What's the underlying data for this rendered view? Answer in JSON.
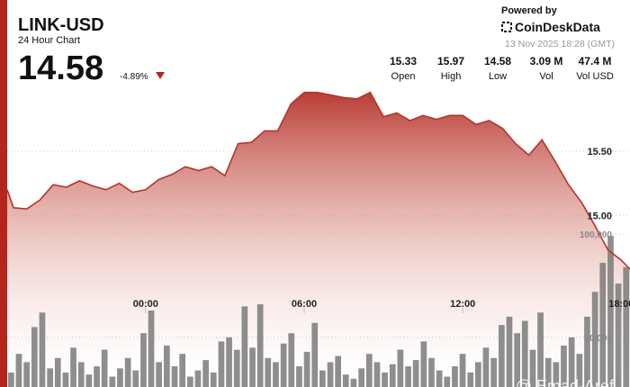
{
  "header": {
    "symbol": "LINK-USD",
    "subtitle": "24 Hour Chart",
    "price": "14.58",
    "change": "-4.89%",
    "powered_by": "Powered by",
    "brand": "CoinDeskData",
    "timestamp": "13 Nov 2025 18:28 (GMT)",
    "stats": [
      {
        "value": "15.33",
        "label": "Open"
      },
      {
        "value": "15.97",
        "label": "High"
      },
      {
        "value": "14.58",
        "label": "Low"
      },
      {
        "value": "3.09 M",
        "label": "Vol"
      },
      {
        "value": "47.4 M",
        "label": "Vol USD"
      }
    ]
  },
  "watermark": "@ Emad-Aref",
  "chart_data": {
    "type": "line",
    "xlim": [
      -5.24,
      18.33
    ],
    "xticks": [
      {
        "value": 0,
        "label": "00:00"
      },
      {
        "value": 6,
        "label": "06:00"
      },
      {
        "value": 12,
        "label": "12:00"
      },
      {
        "value": 18,
        "label": "18:00"
      }
    ],
    "ylim": [
      13.66,
      16.26
    ],
    "yticks": [
      {
        "value": 15,
        "label": "15.00"
      },
      {
        "value": 15.5,
        "label": "15.50"
      }
    ],
    "y2lim": [
      26000,
      187000
    ],
    "y2ticks": [
      {
        "value": 50000,
        "label": "50,000"
      },
      {
        "value": 100000,
        "label": "100,000"
      }
    ],
    "grid": true,
    "series": [
      {
        "type": "line",
        "color": "#b5332b",
        "x": [
          -5.24,
          -5,
          -4.5,
          -4,
          -3.5,
          -3,
          -2.5,
          -2,
          -1.5,
          -1,
          -0.5,
          0,
          0.5,
          1,
          1.5,
          2,
          2.5,
          3,
          3.5,
          4,
          4.5,
          5,
          5.5,
          6,
          6.5,
          7,
          7.5,
          8,
          8.5,
          9,
          9.5,
          10,
          10.5,
          11,
          11.5,
          12,
          12.5,
          13,
          13.5,
          14,
          14.5,
          15,
          15.5,
          16,
          16.5,
          17,
          17.5,
          18,
          18.33
        ],
        "values": [
          15.2,
          15.06,
          15.05,
          15.12,
          15.24,
          15.22,
          15.27,
          15.23,
          15.2,
          15.25,
          15.18,
          15.2,
          15.28,
          15.32,
          15.38,
          15.35,
          15.38,
          15.31,
          15.56,
          15.57,
          15.66,
          15.66,
          15.87,
          15.96,
          15.96,
          15.94,
          15.92,
          15.91,
          15.96,
          15.77,
          15.8,
          15.74,
          15.78,
          15.75,
          15.78,
          15.78,
          15.71,
          15.74,
          15.68,
          15.56,
          15.47,
          15.59,
          15.42,
          15.24,
          15.1,
          14.92,
          14.73,
          14.65,
          14.58
        ]
      },
      {
        "type": "bar",
        "axis": "y2",
        "color": "#7a7a7a",
        "values": [
          33000,
          42000,
          38000,
          55000,
          62000,
          35000,
          40000,
          33000,
          45000,
          38000,
          32000,
          36000,
          44000,
          31000,
          35000,
          40000,
          34000,
          52000,
          63000,
          38000,
          46000,
          36000,
          42000,
          31000,
          34000,
          39000,
          33000,
          48000,
          50000,
          44000,
          65000,
          45000,
          66000,
          40000,
          38000,
          47000,
          52000,
          36000,
          43000,
          57000,
          34000,
          38000,
          41000,
          32000,
          30000,
          35000,
          42000,
          38000,
          33000,
          37000,
          44000,
          36000,
          39000,
          48000,
          40000,
          34000,
          31000,
          36000,
          42000,
          33000,
          38000,
          45000,
          40000,
          56000,
          60000,
          52000,
          58000,
          44000,
          62000,
          40000,
          38000,
          46000,
          50000,
          42000,
          60000,
          72000,
          86000,
          99000,
          76000,
          84000
        ]
      }
    ]
  }
}
